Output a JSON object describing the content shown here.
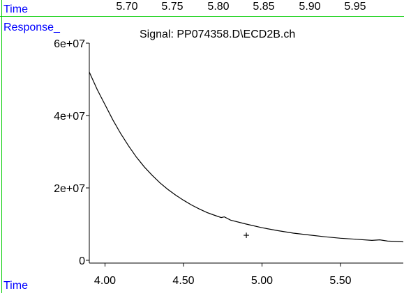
{
  "header": {
    "top_axis_label": "Time",
    "response_label": "Response_",
    "bottom_axis_label": "Time",
    "top_ticks": [
      "5.70",
      "5.75",
      "5.80",
      "5.85",
      "5.90",
      "5.95"
    ]
  },
  "colors": {
    "label_blue": "#0000ff",
    "rule_green": "#00cc00",
    "trace": "#000000"
  },
  "chart_data": {
    "type": "line",
    "title": "Signal: PP074358.D\\ECD2B.ch",
    "xlabel": "Time",
    "ylabel": "Response_",
    "xlim": [
      3.9,
      5.9
    ],
    "ylim": [
      0,
      60000000
    ],
    "x_ticks": [
      4.0,
      4.5,
      5.0,
      5.5
    ],
    "x_tick_labels": [
      "4.00",
      "4.50",
      "5.00",
      "5.50"
    ],
    "y_ticks": [
      0,
      20000000,
      40000000,
      60000000
    ],
    "y_tick_labels": [
      "0",
      "2e+07",
      "4e+07",
      "6e+07"
    ],
    "grid": false,
    "series": [
      {
        "x": [
          3.9,
          3.95,
          4.0,
          4.05,
          4.1,
          4.15,
          4.2,
          4.25,
          4.3,
          4.35,
          4.4,
          4.45,
          4.5,
          4.55,
          4.6,
          4.65,
          4.7,
          4.74,
          4.76,
          4.8,
          4.9,
          5.0,
          5.1,
          5.2,
          5.3,
          5.4,
          5.5,
          5.6,
          5.7,
          5.75,
          5.8,
          5.9
        ],
        "values": [
          52000000,
          47200000,
          43000000,
          38800000,
          35000000,
          31600000,
          28500000,
          25800000,
          23500000,
          21400000,
          19600000,
          18000000,
          16600000,
          15300000,
          14200000,
          13200000,
          12400000,
          11800000,
          12000000,
          11100000,
          10000000,
          9000000,
          8200000,
          7500000,
          7000000,
          6500000,
          6100000,
          5800000,
          5500000,
          5650000,
          5300000,
          5100000
        ]
      }
    ],
    "marker": {
      "symbol": "+",
      "x": 4.9,
      "y": 7000000
    }
  }
}
